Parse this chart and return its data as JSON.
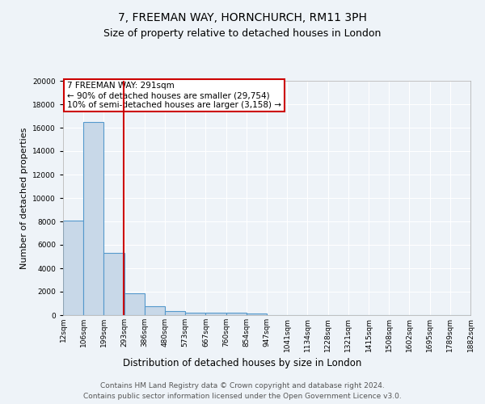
{
  "title_line1": "7, FREEMAN WAY, HORNCHURCH, RM11 3PH",
  "title_line2": "Size of property relative to detached houses in London",
  "xlabel": "Distribution of detached houses by size in London",
  "ylabel": "Number of detached properties",
  "bin_labels": [
    "12sqm",
    "106sqm",
    "199sqm",
    "293sqm",
    "386sqm",
    "480sqm",
    "573sqm",
    "667sqm",
    "760sqm",
    "854sqm",
    "947sqm",
    "1041sqm",
    "1134sqm",
    "1228sqm",
    "1321sqm",
    "1415sqm",
    "1508sqm",
    "1602sqm",
    "1695sqm",
    "1789sqm",
    "1882sqm"
  ],
  "bar_heights": [
    8100,
    16500,
    5300,
    1870,
    730,
    330,
    240,
    200,
    185,
    155,
    0,
    0,
    0,
    0,
    0,
    0,
    0,
    0,
    0,
    0
  ],
  "bar_color": "#c8d8e8",
  "bar_edge_color": "#5599cc",
  "annotation_text": "7 FREEMAN WAY: 291sqm\n← 90% of detached houses are smaller (29,754)\n10% of semi-detached houses are larger (3,158) →",
  "annotation_box_color": "#ffffff",
  "annotation_box_edge": "#cc0000",
  "ylim": [
    0,
    20000
  ],
  "yticks": [
    0,
    2000,
    4000,
    6000,
    8000,
    10000,
    12000,
    14000,
    16000,
    18000,
    20000
  ],
  "footer_line1": "Contains HM Land Registry data © Crown copyright and database right 2024.",
  "footer_line2": "Contains public sector information licensed under the Open Government Licence v3.0.",
  "bg_color": "#eef3f8",
  "plot_bg_color": "#eef3f8",
  "grid_color": "#ffffff",
  "red_line_color": "#cc0000",
  "title_fontsize": 10,
  "subtitle_fontsize": 9,
  "tick_fontsize": 6.5,
  "ylabel_fontsize": 8,
  "xlabel_fontsize": 8.5,
  "footer_fontsize": 6.5,
  "annotation_fontsize": 7.5
}
